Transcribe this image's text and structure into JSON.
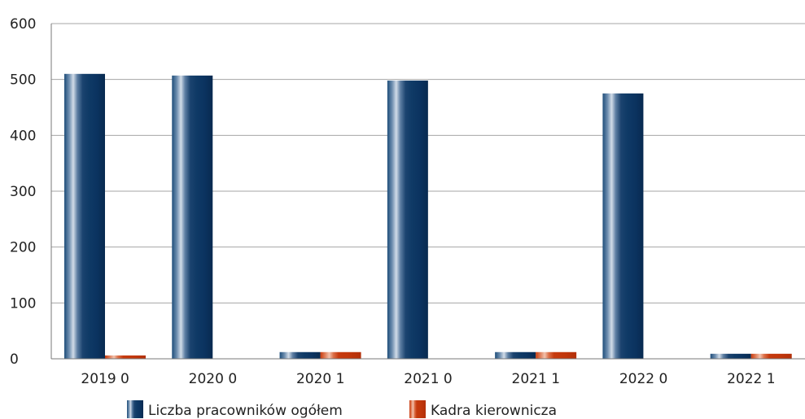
{
  "chart_data": {
    "type": "bar",
    "categories": [
      "2019 0",
      "2020 0",
      "2020 1",
      "2021 0",
      "2021 1",
      "2022 0",
      "2022 1"
    ],
    "series": [
      {
        "name": "Liczba pracowników ogółem",
        "values": [
          510,
          507,
          12,
          498,
          12,
          475,
          9
        ],
        "color": "#0f3a66"
      },
      {
        "name": "Kadra kierownicza",
        "values": [
          6,
          0,
          12,
          0,
          12,
          0,
          9
        ],
        "color": "#c83c0f"
      }
    ],
    "yticks": [
      "0",
      "100",
      "200",
      "300",
      "400",
      "500",
      "600"
    ],
    "ylim": [
      0,
      600
    ],
    "grid": true,
    "legend_position": "bottom"
  }
}
